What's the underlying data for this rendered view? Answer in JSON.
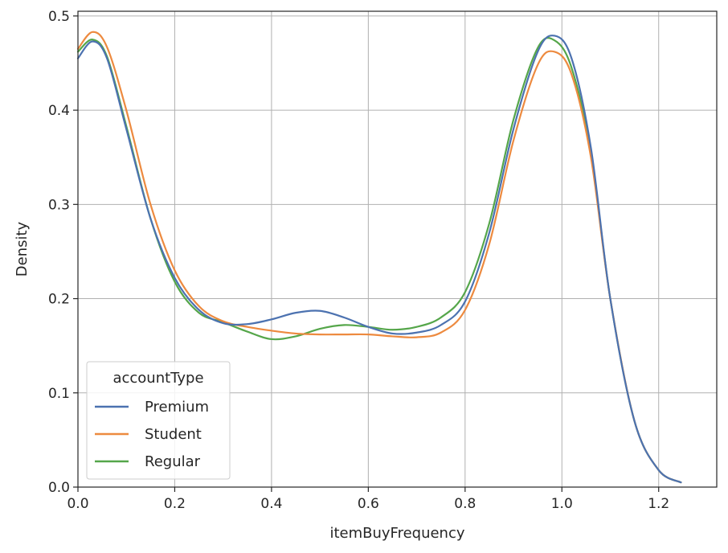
{
  "chart_data": {
    "type": "line",
    "xlabel": "itemBuyFrequency",
    "ylabel": "Density",
    "xlim": [
      0.0,
      1.32
    ],
    "ylim": [
      0.0,
      0.505
    ],
    "xticks": [
      "0.0",
      "0.2",
      "0.4",
      "0.6",
      "0.8",
      "1.0",
      "1.2"
    ],
    "yticks": [
      "0.0",
      "0.1",
      "0.2",
      "0.3",
      "0.4",
      "0.5"
    ],
    "grid": true,
    "legend": {
      "title": "accountType",
      "placement": "lower-left"
    },
    "series": [
      {
        "name": "Premium",
        "color": "#4c72b0",
        "x": [
          0.0,
          0.03,
          0.06,
          0.1,
          0.15,
          0.2,
          0.25,
          0.3,
          0.35,
          0.4,
          0.45,
          0.5,
          0.55,
          0.6,
          0.65,
          0.7,
          0.75,
          0.8,
          0.85,
          0.9,
          0.95,
          0.985,
          1.02,
          1.06,
          1.1,
          1.15,
          1.2,
          1.246
        ],
        "y": [
          0.455,
          0.473,
          0.455,
          0.38,
          0.285,
          0.222,
          0.188,
          0.174,
          0.173,
          0.178,
          0.185,
          0.187,
          0.18,
          0.17,
          0.163,
          0.164,
          0.172,
          0.197,
          0.27,
          0.38,
          0.462,
          0.479,
          0.455,
          0.36,
          0.2,
          0.07,
          0.018,
          0.005
        ]
      },
      {
        "name": "Student",
        "color": "#ed8a3f",
        "x": [
          0.0,
          0.03,
          0.06,
          0.1,
          0.15,
          0.2,
          0.25,
          0.3,
          0.35,
          0.4,
          0.45,
          0.5,
          0.55,
          0.6,
          0.65,
          0.7,
          0.75,
          0.8,
          0.85,
          0.9,
          0.95,
          0.985,
          1.02,
          1.06,
          1.1,
          1.15,
          1.2,
          1.246
        ],
        "y": [
          0.465,
          0.483,
          0.467,
          0.4,
          0.3,
          0.23,
          0.192,
          0.176,
          0.17,
          0.166,
          0.163,
          0.162,
          0.162,
          0.162,
          0.16,
          0.159,
          0.164,
          0.188,
          0.258,
          0.368,
          0.448,
          0.462,
          0.438,
          0.35,
          0.2,
          0.07,
          0.018,
          0.005
        ]
      },
      {
        "name": "Regular",
        "color": "#55a64a",
        "x": [
          0.0,
          0.03,
          0.06,
          0.1,
          0.15,
          0.2,
          0.25,
          0.3,
          0.35,
          0.4,
          0.45,
          0.5,
          0.55,
          0.6,
          0.65,
          0.7,
          0.75,
          0.8,
          0.85,
          0.9,
          0.95,
          0.985,
          1.02,
          1.06,
          1.1,
          1.15,
          1.2,
          1.246
        ],
        "y": [
          0.462,
          0.475,
          0.457,
          0.383,
          0.285,
          0.218,
          0.185,
          0.175,
          0.165,
          0.157,
          0.16,
          0.168,
          0.172,
          0.17,
          0.167,
          0.17,
          0.18,
          0.207,
          0.28,
          0.39,
          0.466,
          0.474,
          0.445,
          0.355,
          0.2,
          0.07,
          0.018,
          0.005
        ]
      }
    ]
  }
}
